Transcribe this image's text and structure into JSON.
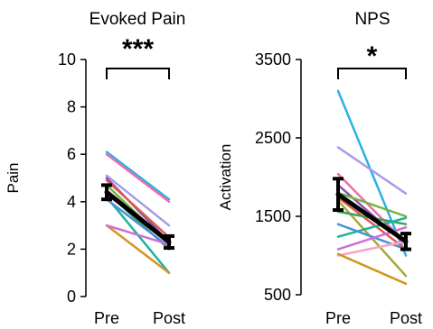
{
  "chart_data": [
    {
      "type": "line",
      "title": "Evoked Pain",
      "xlabel": "",
      "ylabel": "Pain",
      "categories": [
        "Pre",
        "Post"
      ],
      "ylim": [
        0,
        10
      ],
      "yticks": [
        "0",
        "2",
        "4",
        "6",
        "8",
        "10"
      ],
      "significance": "***",
      "grid": false,
      "mean": {
        "values": [
          4.4,
          2.3
        ],
        "errors": [
          0.3,
          0.25
        ],
        "color": "#000000"
      },
      "series": [
        {
          "values": [
            6.1,
            4.1
          ],
          "color": "#27b2e6"
        },
        {
          "values": [
            6.0,
            4.0
          ],
          "color": "#f06fa8"
        },
        {
          "values": [
            5.1,
            3.0
          ],
          "color": "#a79be6"
        },
        {
          "values": [
            5.0,
            2.3
          ],
          "color": "#8a4fb0"
        },
        {
          "values": [
            4.9,
            2.5
          ],
          "color": "#e05a4e"
        },
        {
          "values": [
            4.7,
            2.2
          ],
          "color": "#6fb83f"
        },
        {
          "values": [
            4.5,
            2.3
          ],
          "color": "#f4a6c8"
        },
        {
          "values": [
            4.4,
            2.0
          ],
          "color": "#3aa05a"
        },
        {
          "values": [
            4.3,
            2.4
          ],
          "color": "#d29bd9"
        },
        {
          "values": [
            4.2,
            1.0
          ],
          "color": "#1fb3a0"
        },
        {
          "values": [
            4.1,
            2.1
          ],
          "color": "#4d8fd6"
        },
        {
          "values": [
            3.0,
            1.0
          ],
          "color": "#d4941e"
        },
        {
          "values": [
            3.0,
            2.2
          ],
          "color": "#cf6fd4"
        }
      ]
    },
    {
      "type": "line",
      "title": "NPS",
      "xlabel": "",
      "ylabel": "Activation",
      "categories": [
        "Pre",
        "Post"
      ],
      "ylim": [
        500,
        3500
      ],
      "yticks": [
        "500",
        "1500",
        "2500",
        "3500"
      ],
      "significance": "*",
      "grid": false,
      "mean": {
        "values": [
          1780,
          1180
        ],
        "errors": [
          200,
          100
        ],
        "color": "#000000"
      },
      "series": [
        {
          "values": [
            3100,
            1000
          ],
          "color": "#27b2e6"
        },
        {
          "values": [
            2380,
            1790
          ],
          "color": "#a79be6"
        },
        {
          "values": [
            2040,
            1160
          ],
          "color": "#f06fa8"
        },
        {
          "values": [
            1900,
            1140
          ],
          "color": "#8a4fb0"
        },
        {
          "values": [
            1800,
            1500
          ],
          "color": "#6fb83f"
        },
        {
          "values": [
            1740,
            1080
          ],
          "color": "#e05a4e"
        },
        {
          "values": [
            1700,
            740
          ],
          "color": "#a9a93a"
        },
        {
          "values": [
            1560,
            1400
          ],
          "color": "#3aa05a"
        },
        {
          "values": [
            1240,
            1480
          ],
          "color": "#1fb3a0"
        },
        {
          "values": [
            1400,
            1080
          ],
          "color": "#4d8fd6"
        },
        {
          "values": [
            1080,
            1360
          ],
          "color": "#cf6fd4"
        },
        {
          "values": [
            1000,
            1180
          ],
          "color": "#f4a6c8"
        },
        {
          "values": [
            1020,
            640
          ],
          "color": "#d4941e"
        }
      ]
    }
  ]
}
